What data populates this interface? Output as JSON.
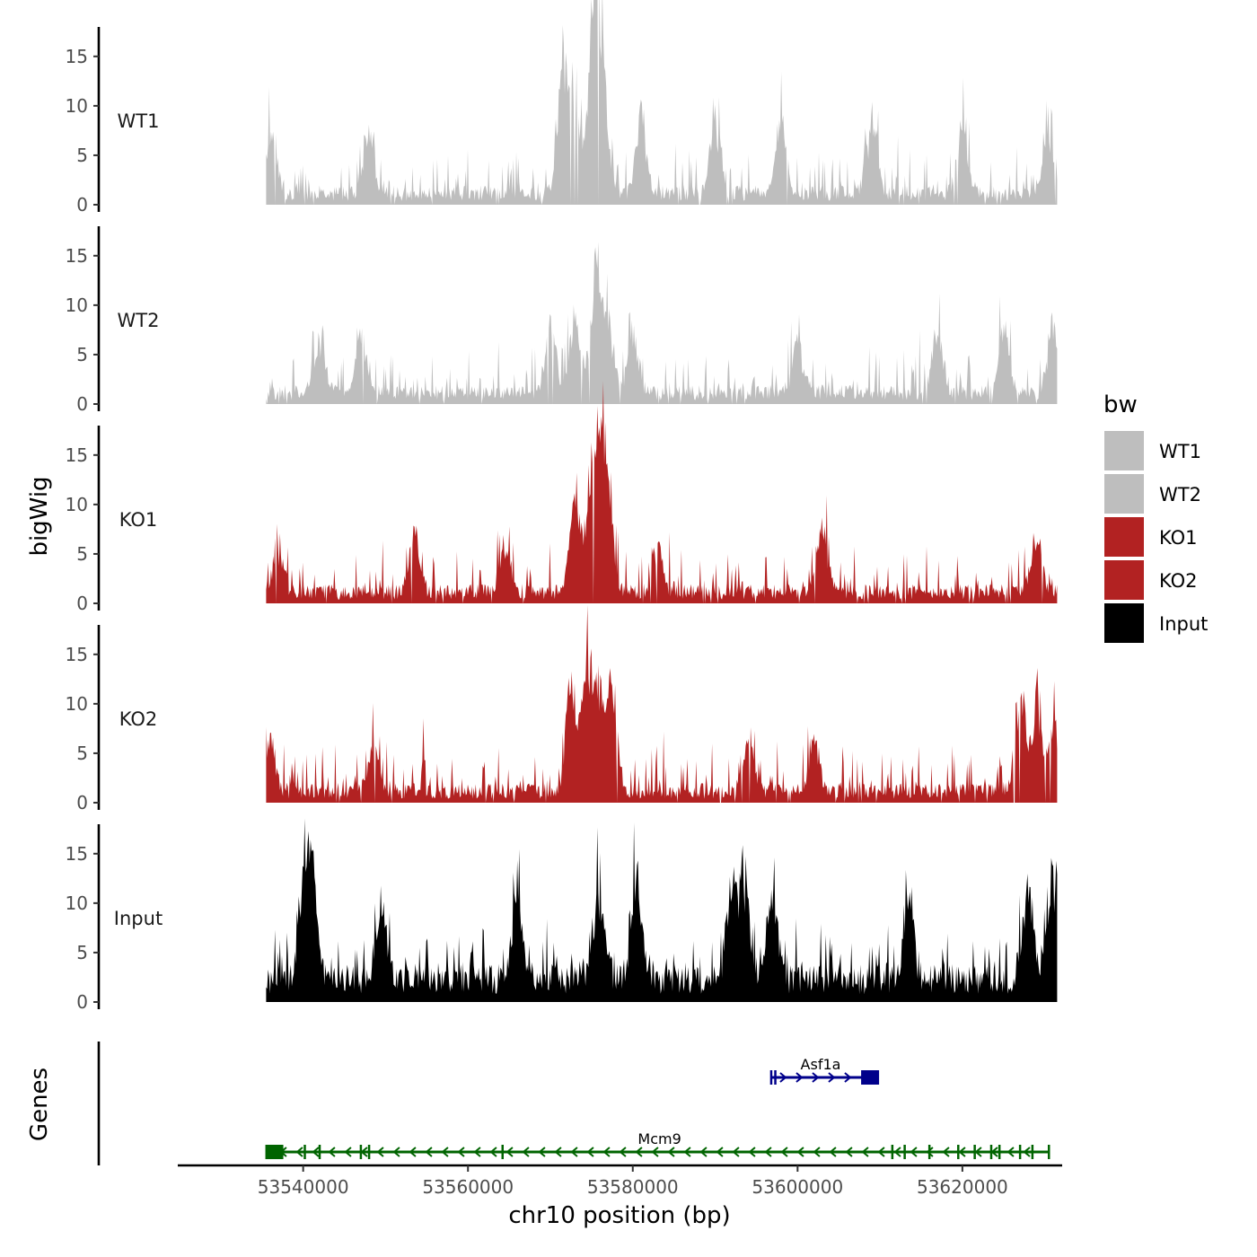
{
  "chart_data": {
    "type": "area",
    "ylabel": "bigWig",
    "genes_label": "Genes",
    "xlabel": "chr10 position (bp)",
    "xlim": [
      53525000,
      53632000
    ],
    "signal_range": [
      53535500,
      53631500
    ],
    "ylim": [
      0,
      17
    ],
    "y_ticks": [
      0,
      5,
      10,
      15
    ],
    "x_ticks": [
      53540000,
      53560000,
      53580000,
      53600000,
      53620000
    ],
    "x_tick_labels": [
      "53540000",
      "53560000",
      "53580000",
      "53600000",
      "53620000"
    ],
    "tracks": [
      {
        "name": "WT1",
        "color": "#bebebe",
        "peaks": [
          [
            53536000,
            7.0
          ],
          [
            53548000,
            7.5
          ],
          [
            53571500,
            14.3
          ],
          [
            53573000,
            10.5
          ],
          [
            53575000,
            11.5
          ],
          [
            53575700,
            16.5
          ],
          [
            53576500,
            10.5
          ],
          [
            53581000,
            9.5
          ],
          [
            53590000,
            9.5
          ],
          [
            53598000,
            8.2
          ],
          [
            53609000,
            9.2
          ],
          [
            53620000,
            8.6
          ],
          [
            53630500,
            8.8
          ]
        ]
      },
      {
        "name": "WT2",
        "color": "#bebebe",
        "peaks": [
          [
            53542000,
            6.5
          ],
          [
            53547000,
            7.0
          ],
          [
            53570000,
            8.5
          ],
          [
            53573000,
            10.0
          ],
          [
            53575500,
            14.3
          ],
          [
            53577000,
            9.0
          ],
          [
            53580000,
            7.5
          ],
          [
            53600000,
            7.0
          ],
          [
            53617000,
            7.3
          ],
          [
            53625000,
            8.0
          ],
          [
            53631000,
            8.5
          ]
        ]
      },
      {
        "name": "KO1",
        "color": "#b22222",
        "peaks": [
          [
            53537000,
            5.0
          ],
          [
            53553500,
            7.0
          ],
          [
            53564500,
            5.8
          ],
          [
            53573000,
            12.0
          ],
          [
            53575000,
            11.5
          ],
          [
            53576000,
            14.5
          ],
          [
            53577000,
            10.0
          ],
          [
            53583000,
            5.5
          ],
          [
            53603000,
            8.5
          ],
          [
            53629000,
            7.2
          ]
        ]
      },
      {
        "name": "KO2",
        "color": "#b22222",
        "peaks": [
          [
            53536000,
            6.5
          ],
          [
            53548500,
            6.0
          ],
          [
            53572500,
            12.5
          ],
          [
            53574500,
            15.5
          ],
          [
            53576000,
            11.0
          ],
          [
            53577500,
            12.0
          ],
          [
            53594000,
            6.5
          ],
          [
            53602000,
            6.3
          ],
          [
            53627000,
            10.5
          ],
          [
            53629000,
            10.8
          ],
          [
            53631000,
            8.0
          ]
        ]
      },
      {
        "name": "Input",
        "color": "#000000",
        "peaks": [
          [
            53540000,
            9.0
          ],
          [
            53541000,
            13.5
          ],
          [
            53549500,
            9.8
          ],
          [
            53566000,
            10.0
          ],
          [
            53576000,
            11.3
          ],
          [
            53580500,
            12.5
          ],
          [
            53592000,
            11.5
          ],
          [
            53593500,
            12.2
          ],
          [
            53597000,
            11.0
          ],
          [
            53613500,
            11.0
          ],
          [
            53628000,
            11.5
          ],
          [
            53631000,
            13.2
          ]
        ]
      }
    ],
    "genes": [
      {
        "name": "Asf1a",
        "start": 53596800,
        "end": 53608800,
        "strand": "+",
        "color": "#00008b",
        "row": 1,
        "exons": [
          53596800,
          53597300,
          53608800
        ]
      },
      {
        "name": "Mcm9",
        "start": 53536000,
        "end": 53630500,
        "strand": "-",
        "color": "#006400",
        "row": 2,
        "exons": [
          53536500,
          53537400,
          53540200,
          53542000,
          53547000,
          53548000,
          53564200,
          53611500,
          53613000,
          53616000,
          53619500,
          53621500,
          53623500,
          53624500,
          53627000,
          53628500,
          53630500
        ]
      }
    ],
    "legend": {
      "title": "bw",
      "position": "right",
      "entries": [
        {
          "label": "WT1",
          "color": "#bebebe"
        },
        {
          "label": "WT2",
          "color": "#bebebe"
        },
        {
          "label": "KO1",
          "color": "#b22222"
        },
        {
          "label": "KO2",
          "color": "#b22222"
        },
        {
          "label": "Input",
          "color": "#000000"
        }
      ]
    }
  }
}
